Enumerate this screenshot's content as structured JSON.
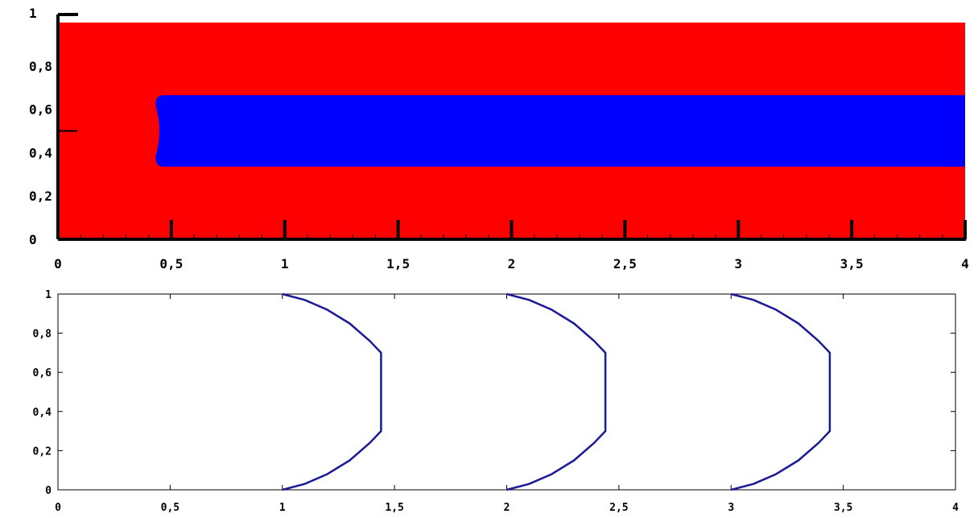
{
  "chart_data": [
    {
      "type": "heatmap",
      "title": "",
      "xlabel": "",
      "ylabel": "",
      "xlim": [
        0,
        4
      ],
      "ylim": [
        0,
        1
      ],
      "x_ticks": [
        "0",
        "0,5",
        "1",
        "1,5",
        "2",
        "2,5",
        "3",
        "3,5",
        "4"
      ],
      "y_ticks": [
        "0",
        "0,2",
        "0,4",
        "0,6",
        "0,8",
        "1"
      ],
      "background_color": "#ff0000",
      "jet": {
        "color": "#0000ff",
        "x_start": 0.43,
        "x_end": 4.0,
        "y_bottom": 0.335,
        "y_top": 0.665,
        "nose_bulge": 0.02
      },
      "grid": false,
      "legend": "none"
    },
    {
      "type": "line",
      "title": "",
      "xlabel": "",
      "ylabel": "",
      "xlim": [
        0,
        4
      ],
      "ylim": [
        0,
        1
      ],
      "x_ticks": [
        "0",
        "0,5",
        "1",
        "1,5",
        "2",
        "2,5",
        "3",
        "3,5",
        "4"
      ],
      "y_ticks": [
        "0",
        "0,2",
        "0,4",
        "0,6",
        "0,8",
        "1"
      ],
      "line_color": "#1a1a99",
      "series": [
        {
          "x": [
            1,
            1.1,
            1.2,
            1.3,
            1.39,
            1.44,
            1.44,
            1.39,
            1.3,
            1.2,
            1.1,
            1
          ],
          "y": [
            0,
            0.03,
            0.08,
            0.15,
            0.24,
            0.3,
            0.7,
            0.76,
            0.85,
            0.92,
            0.97,
            1
          ]
        },
        {
          "x": [
            2,
            2.1,
            2.2,
            2.3,
            2.39,
            2.44,
            2.44,
            2.39,
            2.3,
            2.2,
            2.1,
            2
          ],
          "y": [
            0,
            0.03,
            0.08,
            0.15,
            0.24,
            0.3,
            0.7,
            0.76,
            0.85,
            0.92,
            0.97,
            1
          ]
        },
        {
          "x": [
            3,
            3.1,
            3.2,
            3.3,
            3.39,
            3.44,
            3.44,
            3.39,
            3.3,
            3.2,
            3.1,
            3
          ],
          "y": [
            0,
            0.03,
            0.08,
            0.15,
            0.24,
            0.3,
            0.7,
            0.76,
            0.85,
            0.92,
            0.97,
            1
          ]
        }
      ],
      "grid": false,
      "legend": "none"
    }
  ]
}
